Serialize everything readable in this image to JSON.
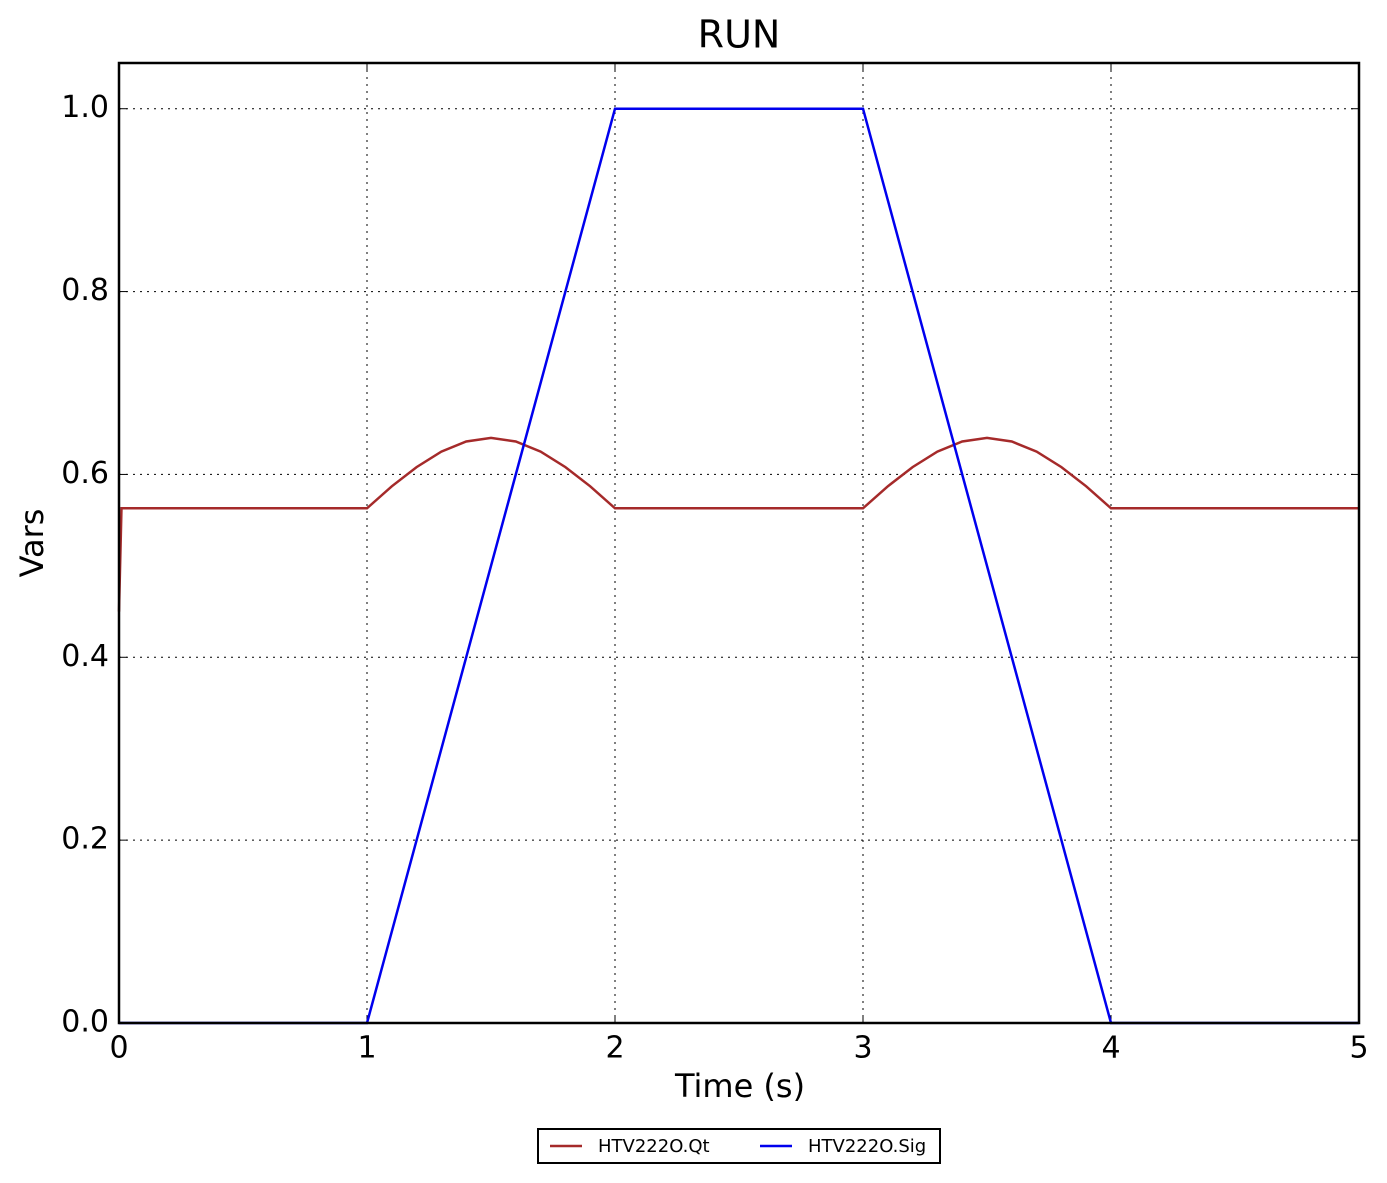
{
  "chart_data": {
    "type": "line",
    "title": "RUN",
    "x_label": "Time (s)",
    "y_label": "Vars",
    "xlim": [
      0,
      5
    ],
    "xticks": [
      0,
      1,
      2,
      3,
      4,
      5
    ],
    "ylim": [
      0,
      1.05
    ],
    "yticks": [
      {
        "value": 0,
        "label": "0.0"
      },
      {
        "value": 0.2,
        "label": "0.2"
      },
      {
        "value": 0.4,
        "label": "0.4"
      },
      {
        "value": 0.6,
        "label": "0.6"
      },
      {
        "value": 0.8,
        "label": "0.8"
      },
      {
        "value": 1,
        "label": "1.0"
      }
    ],
    "grid": true,
    "legend": "below",
    "series": [
      {
        "name": "HTV222O.Qt",
        "color": "#a52a2a",
        "x": [
          0,
          0.01,
          1,
          1.1,
          1.2,
          1.3,
          1.4,
          1.5,
          1.6,
          1.7,
          1.8,
          1.9,
          2,
          3,
          3.1,
          3.2,
          3.3,
          3.4,
          3.5,
          3.6,
          3.7,
          3.8,
          3.9,
          4,
          5
        ],
        "values": [
          0.45,
          0.563,
          0.563,
          0.587,
          0.608,
          0.625,
          0.636,
          0.64,
          0.636,
          0.625,
          0.608,
          0.587,
          0.563,
          0.563,
          0.587,
          0.608,
          0.625,
          0.636,
          0.64,
          0.636,
          0.625,
          0.608,
          0.587,
          0.563,
          0.563
        ]
      },
      {
        "name": "HTV222O.Sig",
        "color": "#0000ee",
        "x": [
          0,
          1,
          2,
          3,
          4,
          5
        ],
        "values": [
          0,
          0,
          1,
          1,
          0,
          0
        ]
      }
    ]
  }
}
